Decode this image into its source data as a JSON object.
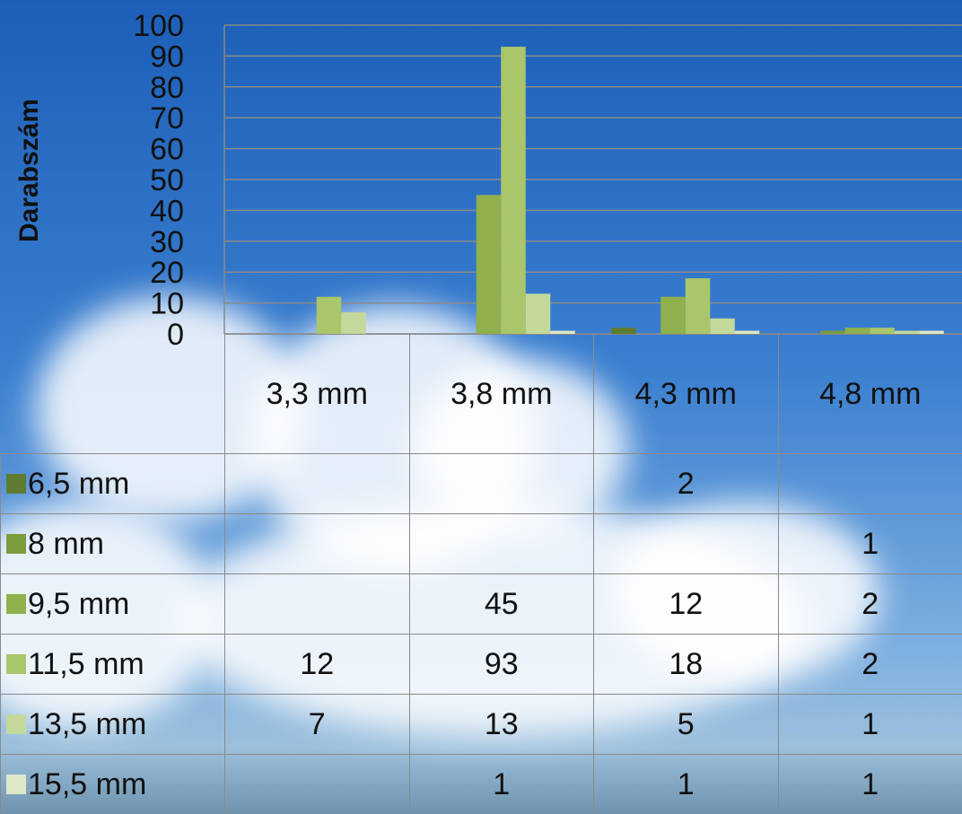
{
  "chart_data": {
    "type": "bar",
    "y_label": "Darabszám",
    "categories": [
      "3,3 mm",
      "3,8 mm",
      "4,3 mm",
      "4,8 mm"
    ],
    "series": [
      {
        "name": "6,5 mm",
        "color": "#5f7b2f",
        "values": [
          null,
          null,
          2,
          null
        ]
      },
      {
        "name": "8 mm",
        "color": "#7a9c3c",
        "values": [
          null,
          null,
          null,
          1
        ]
      },
      {
        "name": "9,5 mm",
        "color": "#8fb04c",
        "values": [
          null,
          45,
          12,
          2
        ]
      },
      {
        "name": "11,5 mm",
        "color": "#a9c66b",
        "values": [
          12,
          93,
          18,
          2
        ]
      },
      {
        "name": "13,5 mm",
        "color": "#c5d89c",
        "values": [
          7,
          13,
          5,
          1
        ]
      },
      {
        "name": "15,5 mm",
        "color": "#dde8c6",
        "values": [
          null,
          1,
          1,
          1
        ]
      }
    ],
    "ylim": [
      0,
      100
    ],
    "yticks": [
      0,
      10,
      20,
      30,
      40,
      50,
      60,
      70,
      80,
      90,
      100
    ],
    "grid": true
  }
}
